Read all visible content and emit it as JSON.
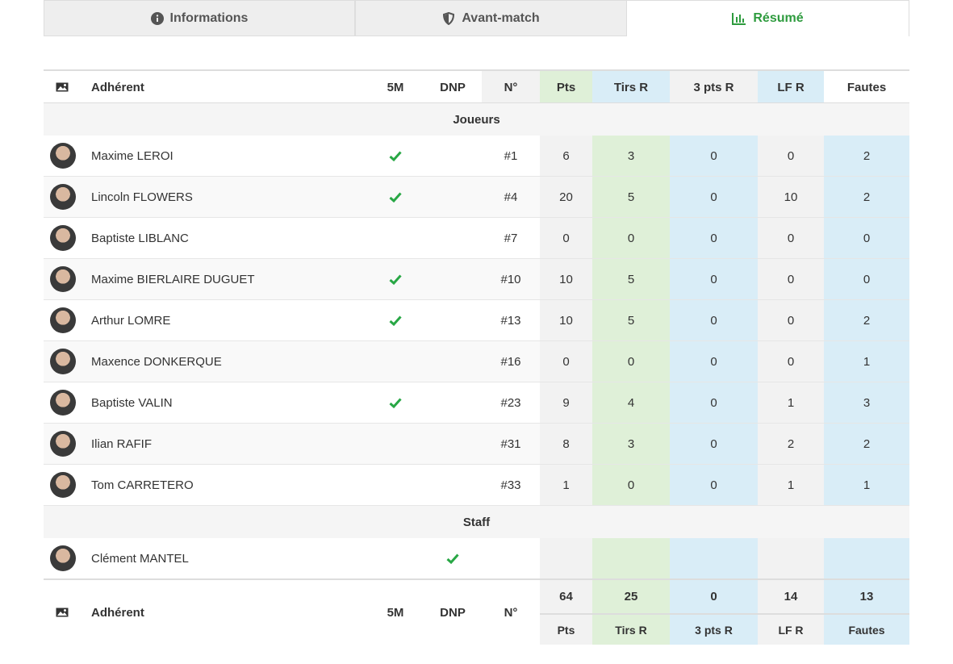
{
  "tabs": [
    "Informations",
    "Avant-match",
    "Résumé"
  ],
  "table": {
    "headers": [
      "Adhérent",
      "5M",
      "DNP",
      "N°",
      "Pts",
      "Tirs R",
      "3 pts R",
      "LF R",
      "Fautes"
    ],
    "sections": [
      {
        "title": "Joueurs",
        "rows": [
          {
            "name": "Maxime LEROI",
            "five": true,
            "dnp": false,
            "number": "#1",
            "stats": [
              6,
              3,
              0,
              0,
              2
            ]
          },
          {
            "name": "Lincoln FLOWERS",
            "five": true,
            "dnp": false,
            "number": "#4",
            "stats": [
              20,
              5,
              0,
              10,
              2
            ]
          },
          {
            "name": "Baptiste LIBLANC",
            "five": false,
            "dnp": false,
            "number": "#7",
            "stats": [
              0,
              0,
              0,
              0,
              0
            ]
          },
          {
            "name": "Maxime BIERLAIRE DUGUET",
            "five": true,
            "dnp": false,
            "number": "#10",
            "stats": [
              10,
              5,
              0,
              0,
              0
            ]
          },
          {
            "name": "Arthur LOMRE",
            "five": true,
            "dnp": false,
            "number": "#13",
            "stats": [
              10,
              5,
              0,
              0,
              2
            ]
          },
          {
            "name": "Maxence DONKERQUE",
            "five": false,
            "dnp": false,
            "number": "#16",
            "stats": [
              0,
              0,
              0,
              0,
              1
            ]
          },
          {
            "name": "Baptiste VALIN",
            "five": true,
            "dnp": false,
            "number": "#23",
            "stats": [
              9,
              4,
              0,
              1,
              3
            ]
          },
          {
            "name": "Ilian RAFIF",
            "five": false,
            "dnp": false,
            "number": "#31",
            "stats": [
              8,
              3,
              0,
              2,
              2
            ]
          },
          {
            "name": "Tom CARRETERO",
            "five": false,
            "dnp": false,
            "number": "#33",
            "stats": [
              1,
              0,
              0,
              1,
              1
            ]
          }
        ]
      },
      {
        "title": "Staff",
        "rows": [
          {
            "name": "Clément MANTEL",
            "five": false,
            "dnp": true
          }
        ]
      }
    ],
    "totals": [
      64,
      25,
      0,
      14,
      13
    ]
  }
}
